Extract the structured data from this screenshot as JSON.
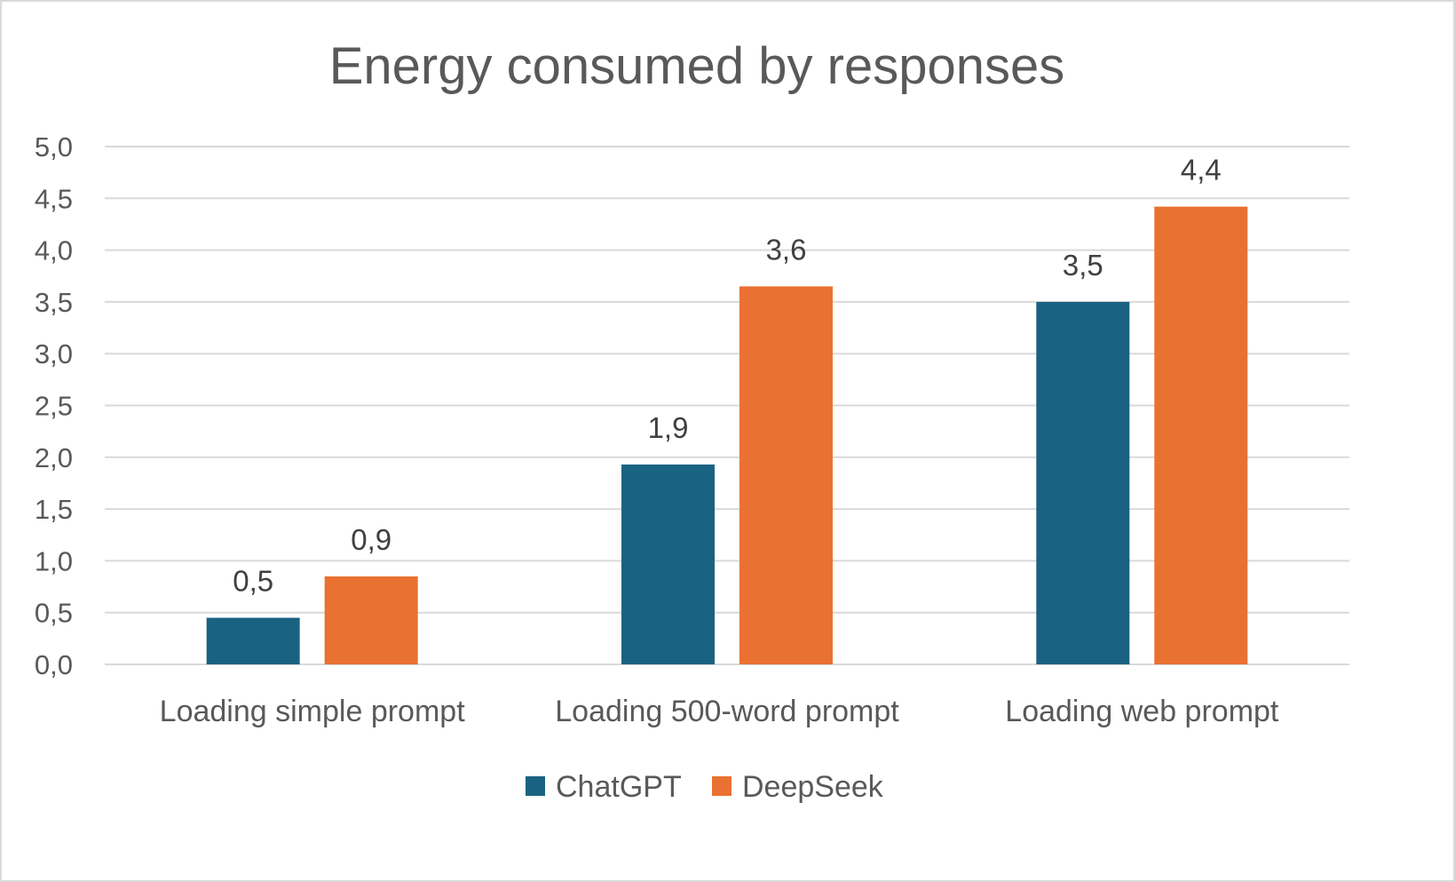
{
  "chart_data": {
    "type": "bar",
    "title": "Energy consumed by responses",
    "xlabel": "",
    "ylabel": "",
    "categories": [
      "Loading simple prompt",
      "Loading 500-word prompt",
      "Loading web prompt"
    ],
    "series": [
      {
        "name": "ChatGPT",
        "color": "#1a6282",
        "values": [
          0.45,
          1.93,
          3.5
        ],
        "data_labels": [
          "0,5",
          "1,9",
          "3,5"
        ]
      },
      {
        "name": "DeepSeek",
        "color": "#e97132",
        "values": [
          0.85,
          3.65,
          4.42
        ],
        "data_labels": [
          "0,9",
          "3,6",
          "4,4"
        ]
      }
    ],
    "ylim": [
      0,
      5
    ],
    "yticks": [
      0,
      0.5,
      1,
      1.5,
      2,
      2.5,
      3,
      3.5,
      4,
      4.5,
      5
    ],
    "ytick_labels": [
      "0,0",
      "0,5",
      "1,0",
      "1,5",
      "2,0",
      "2,5",
      "3,0",
      "3,5",
      "4,0",
      "4,5",
      "5,0"
    ],
    "grid": true,
    "gridline_color": "#d9d9d9",
    "legend_position": "bottom"
  }
}
